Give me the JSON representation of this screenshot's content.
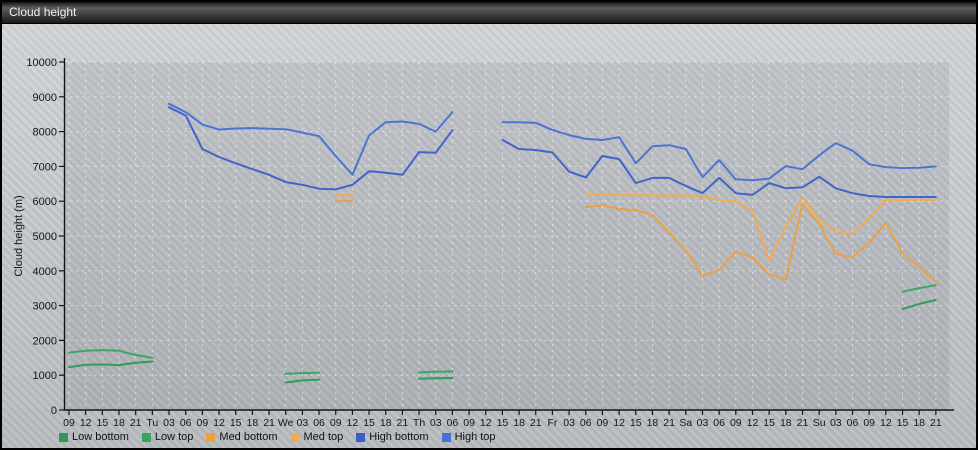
{
  "window": {
    "title": "Cloud height"
  },
  "chart_data": {
    "type": "line",
    "title": "Cloud height",
    "ylabel": "Cloud height (m)",
    "ylim": [
      0,
      10000
    ],
    "y_tick_step": 1000,
    "grid": "dashed-white, every 3h vertical and every 1000 m horizontal",
    "legend_position": "bottom-left",
    "x_tick_labels": [
      "09",
      "12",
      "15",
      "18",
      "21",
      "Tu",
      "03",
      "06",
      "09",
      "12",
      "15",
      "18",
      "21",
      "We",
      "03",
      "06",
      "09",
      "12",
      "15",
      "18",
      "21",
      "Th",
      "03",
      "06",
      "09",
      "12",
      "15",
      "18",
      "21",
      "Fr",
      "03",
      "06",
      "09",
      "12",
      "15",
      "18",
      "21",
      "Sa",
      "03",
      "06",
      "09",
      "12",
      "15",
      "18",
      "21",
      "Su",
      "03",
      "06",
      "09",
      "12",
      "15",
      "18",
      "21"
    ],
    "series": [
      {
        "name": "Low bottom",
        "color": "#2a9a55",
        "segments": [
          {
            "start": 0,
            "values": [
              1230,
              1300,
              1310,
              1290,
              1360,
              1390
            ]
          },
          {
            "start": 13,
            "values": [
              790,
              850,
              870
            ]
          },
          {
            "start": 21,
            "values": [
              900,
              910,
              920
            ]
          },
          {
            "start": 50,
            "values": [
              2900,
              3050,
              3160
            ]
          }
        ]
      },
      {
        "name": "Low top",
        "color": "#35a560",
        "segments": [
          {
            "start": 0,
            "values": [
              1650,
              1700,
              1720,
              1700,
              1580,
              1500
            ]
          },
          {
            "start": 13,
            "values": [
              1040,
              1060,
              1070
            ]
          },
          {
            "start": 21,
            "values": [
              1080,
              1100,
              1110
            ]
          },
          {
            "start": 50,
            "values": [
              3400,
              3500,
              3590
            ]
          }
        ]
      },
      {
        "name": "Med bottom",
        "color": "#ee9f3e",
        "segments": [
          {
            "start": 16,
            "values": [
              6000,
              6010
            ]
          },
          {
            "start": 31,
            "values": [
              5830,
              5890,
              5780,
              5740,
              5600,
              5110,
              4590,
              3860,
              4020,
              4540,
              4390,
              3900,
              3760,
              5920,
              5340,
              4480,
              4400,
              4800,
              5380,
              4500,
              4100,
              3680
            ]
          }
        ]
      },
      {
        "name": "Med top",
        "color": "#f4aa4c",
        "segments": [
          {
            "start": 16,
            "values": [
              6170,
              6170
            ]
          },
          {
            "start": 31,
            "values": [
              6200,
              6190,
              6180,
              6170,
              6170,
              6160,
              6160,
              6150,
              6030,
              6000,
              5710,
              4300,
              5250,
              6100,
              5490,
              5110,
              5060,
              5500,
              6030,
              6030,
              6040,
              6030
            ]
          }
        ]
      },
      {
        "name": "High bottom",
        "color": "#3a5fc8",
        "segments": [
          {
            "start": 6,
            "values": [
              8700,
              8460,
              7500,
              7270,
              7090,
              6920,
              6760,
              6550,
              6470,
              6360,
              6340,
              6470,
              6860,
              6820,
              6760,
              7410,
              7390,
              8040
            ]
          },
          {
            "start": 26,
            "values": [
              7760,
              7500,
              7470,
              7400,
              6850,
              6680,
              7300,
              7210,
              6520,
              6670,
              6670,
              6440,
              6230,
              6670,
              6230,
              6180,
              6520,
              6370,
              6400,
              6700,
              6370,
              6230,
              6150,
              6120,
              6120,
              6120,
              6120
            ]
          }
        ]
      },
      {
        "name": "High top",
        "color": "#4671d4",
        "segments": [
          {
            "start": 6,
            "values": [
              8800,
              8560,
              8200,
              8060,
              8090,
              8100,
              8080,
              8070,
              7970,
              7870,
              7300,
              6760,
              7890,
              8270,
              8290,
              8220,
              8000,
              8560
            ]
          },
          {
            "start": 26,
            "values": [
              8270,
              8270,
              8250,
              8050,
              7900,
              7790,
              7760,
              7840,
              7090,
              7580,
              7610,
              7500,
              6690,
              7180,
              6630,
              6600,
              6650,
              7010,
              6920,
              7320,
              7670,
              7450,
              7060,
              6980,
              6950,
              6960,
              7000
            ]
          }
        ]
      }
    ]
  }
}
